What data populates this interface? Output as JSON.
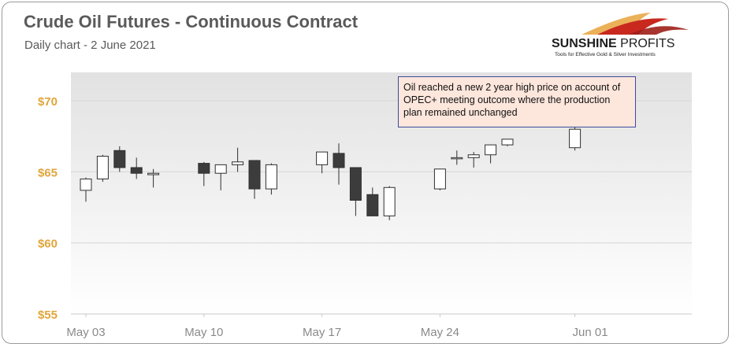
{
  "header": {
    "title": "Crude Oil Futures - Continuous Contract",
    "subtitle": "Daily chart - 2 June 2021"
  },
  "logo": {
    "brand_part1": "SUNSHINE",
    "brand_part2": "PROFITS",
    "tagline": "Tools for Effective Gold & Silver Investments",
    "colors": {
      "brand": "#1d1d1d",
      "accent_red": "#c8281e",
      "accent_gold": "#e8a33c"
    }
  },
  "annotation": {
    "text": "Oil reached a new 2 year high price on account of OPEC+ meeting outcome where the production plan remained unchanged"
  },
  "chart_data": {
    "type": "candlestick",
    "title": "Crude Oil Futures - Continuous Contract",
    "subtitle": "Daily chart - 2 June 2021",
    "xlabel": "",
    "ylabel": "",
    "ylim": [
      55,
      72
    ],
    "y_ticks": [
      {
        "value": 70,
        "label": "$70"
      },
      {
        "value": 65,
        "label": "$65"
      },
      {
        "value": 60,
        "label": "$60"
      },
      {
        "value": 55,
        "label": "$55"
      }
    ],
    "x_ticks": [
      {
        "date": "2021-05-03",
        "label": "May 03"
      },
      {
        "date": "2021-05-10",
        "label": "May 10"
      },
      {
        "date": "2021-05-17",
        "label": "May 17"
      },
      {
        "date": "2021-05-24",
        "label": "May 24"
      },
      {
        "date": "2021-06-01",
        "label": "Jun 01"
      }
    ],
    "grid": true,
    "colors": {
      "up_fill": "#ffffff",
      "down_fill": "#3c3c3c",
      "outline": "#2f2f2f",
      "axis_labels": "#e0a63a",
      "x_labels": "#8a8a8a",
      "plot_gradient_top": "#e3e3e3",
      "plot_gradient_bottom": "#ffffff",
      "gridline": "#d6d6d6"
    },
    "candles": [
      {
        "date": "2021-05-03",
        "open": 63.7,
        "high": 64.6,
        "low": 62.9,
        "close": 64.5
      },
      {
        "date": "2021-05-04",
        "open": 64.5,
        "high": 66.2,
        "low": 64.3,
        "close": 66.1
      },
      {
        "date": "2021-05-05",
        "open": 66.5,
        "high": 66.8,
        "low": 65.0,
        "close": 65.3
      },
      {
        "date": "2021-05-06",
        "open": 65.3,
        "high": 66.0,
        "low": 64.5,
        "close": 64.9
      },
      {
        "date": "2021-05-07",
        "open": 64.8,
        "high": 65.2,
        "low": 63.9,
        "close": 64.9
      },
      {
        "date": "2021-05-10",
        "open": 65.6,
        "high": 65.7,
        "low": 64.0,
        "close": 64.9
      },
      {
        "date": "2021-05-11",
        "open": 64.9,
        "high": 65.5,
        "low": 63.7,
        "close": 65.5
      },
      {
        "date": "2021-05-12",
        "open": 65.5,
        "high": 66.7,
        "low": 65.0,
        "close": 65.7
      },
      {
        "date": "2021-05-13",
        "open": 65.8,
        "high": 65.8,
        "low": 63.1,
        "close": 63.8
      },
      {
        "date": "2021-05-14",
        "open": 63.8,
        "high": 65.6,
        "low": 63.4,
        "close": 65.5
      },
      {
        "date": "2021-05-17",
        "open": 65.5,
        "high": 66.4,
        "low": 64.9,
        "close": 66.4
      },
      {
        "date": "2021-05-18",
        "open": 66.3,
        "high": 67.0,
        "low": 64.1,
        "close": 65.3
      },
      {
        "date": "2021-05-19",
        "open": 65.3,
        "high": 65.3,
        "low": 61.9,
        "close": 63.0
      },
      {
        "date": "2021-05-20",
        "open": 63.4,
        "high": 63.9,
        "low": 61.9,
        "close": 61.9
      },
      {
        "date": "2021-05-21",
        "open": 61.9,
        "high": 64.0,
        "low": 61.6,
        "close": 63.9
      },
      {
        "date": "2021-05-24",
        "open": 63.8,
        "high": 65.2,
        "low": 63.7,
        "close": 65.2
      },
      {
        "date": "2021-05-25",
        "open": 66.0,
        "high": 66.5,
        "low": 65.5,
        "close": 66.0
      },
      {
        "date": "2021-05-26",
        "open": 66.0,
        "high": 66.4,
        "low": 65.3,
        "close": 66.2
      },
      {
        "date": "2021-05-27",
        "open": 66.2,
        "high": 66.9,
        "low": 65.6,
        "close": 66.9
      },
      {
        "date": "2021-05-28",
        "open": 66.9,
        "high": 67.3,
        "low": 66.8,
        "close": 67.3
      },
      {
        "date": "2021-06-01",
        "open": 66.7,
        "high": 68.8,
        "low": 66.5,
        "close": 68.0
      }
    ]
  }
}
